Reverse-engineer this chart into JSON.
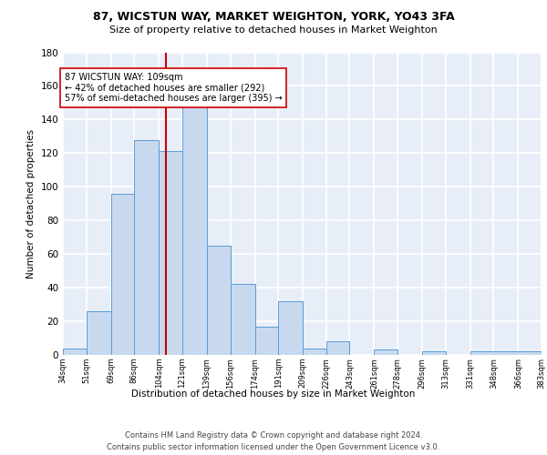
{
  "title1": "87, WICSTUN WAY, MARKET WEIGHTON, YORK, YO43 3FA",
  "title2": "Size of property relative to detached houses in Market Weighton",
  "xlabel": "Distribution of detached houses by size in Market Weighton",
  "ylabel": "Number of detached properties",
  "bar_values": [
    4,
    26,
    96,
    128,
    121,
    150,
    65,
    42,
    17,
    32,
    4,
    8,
    0,
    3,
    0,
    2,
    0,
    2
  ],
  "bin_edges": [
    34,
    51,
    69,
    86,
    104,
    121,
    139,
    156,
    174,
    191,
    209,
    226,
    243,
    261,
    278,
    296,
    313,
    331,
    383
  ],
  "tick_labels": [
    "34sqm",
    "51sqm",
    "69sqm",
    "86sqm",
    "104sqm",
    "121sqm",
    "139sqm",
    "156sqm",
    "174sqm",
    "191sqm",
    "209sqm",
    "226sqm",
    "243sqm",
    "261sqm",
    "278sqm",
    "296sqm",
    "313sqm",
    "331sqm",
    "348sqm",
    "366sqm",
    "383sqm"
  ],
  "property_line_x": 109,
  "bar_color": "#c8d9ef",
  "bar_edge_color": "#5b9bd5",
  "vline_color": "#cc0000",
  "annotation_text": "87 WICSTUN WAY: 109sqm\n← 42% of detached houses are smaller (292)\n57% of semi-detached houses are larger (395) →",
  "annotation_box_color": "#ffffff",
  "annotation_box_edge": "#cc0000",
  "ylim": [
    0,
    180
  ],
  "yticks": [
    0,
    20,
    40,
    60,
    80,
    100,
    120,
    140,
    160,
    180
  ],
  "footer1": "Contains HM Land Registry data © Crown copyright and database right 2024.",
  "footer2": "Contains public sector information licensed under the Open Government Licence v3.0.",
  "bg_color": "#e8eef8",
  "grid_color": "#ffffff",
  "title1_fontsize": 9,
  "title2_fontsize": 8,
  "xlabel_fontsize": 7.5,
  "ylabel_fontsize": 7.5,
  "ytick_fontsize": 7.5,
  "xtick_fontsize": 6,
  "footer_fontsize": 6,
  "annot_fontsize": 7
}
